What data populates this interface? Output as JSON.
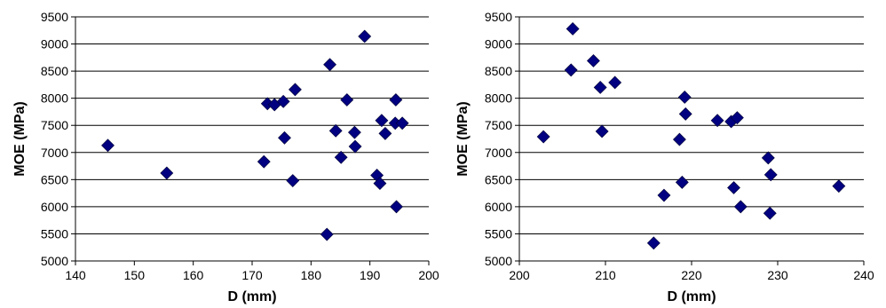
{
  "chart_data": [
    {
      "type": "scatter",
      "xlabel": "D (mm)",
      "ylabel": "MOE (MPa)",
      "xlim": [
        140,
        200
      ],
      "ylim": [
        5000,
        9500
      ],
      "xticks": [
        "140",
        "150",
        "160",
        "170",
        "180",
        "190",
        "200"
      ],
      "yticks": [
        "5000",
        "5500",
        "6000",
        "6500",
        "7000",
        "7500",
        "8000",
        "8500",
        "9000",
        "9500"
      ],
      "grid": "horizontal",
      "marker_color": "#000080",
      "points": [
        [
          145.5,
          7130
        ],
        [
          155.5,
          6620
        ],
        [
          172,
          6830
        ],
        [
          172.6,
          7900
        ],
        [
          173.8,
          7880
        ],
        [
          175.3,
          7940
        ],
        [
          175.5,
          7270
        ],
        [
          176.9,
          6480
        ],
        [
          177.3,
          8160
        ],
        [
          182.7,
          5490
        ],
        [
          183.2,
          8620
        ],
        [
          184.2,
          7400
        ],
        [
          185.1,
          6910
        ],
        [
          186.1,
          7970
        ],
        [
          187.4,
          7370
        ],
        [
          187.5,
          7110
        ],
        [
          189.1,
          9140
        ],
        [
          191.2,
          6580
        ],
        [
          191.7,
          6430
        ],
        [
          192,
          7590
        ],
        [
          192.6,
          7350
        ],
        [
          194.3,
          7540
        ],
        [
          194.4,
          7970
        ],
        [
          194.5,
          6000
        ],
        [
          195.5,
          7540
        ]
      ]
    },
    {
      "type": "scatter",
      "xlabel": "D (mm)",
      "ylabel": "MOE (MPa)",
      "xlim": [
        200,
        240
      ],
      "ylim": [
        5000,
        9500
      ],
      "xticks": [
        "200",
        "210",
        "220",
        "230",
        "240"
      ],
      "yticks": [
        "5000",
        "5500",
        "6000",
        "6500",
        "7000",
        "7500",
        "8000",
        "8500",
        "9000",
        "9500"
      ],
      "grid": "horizontal",
      "marker_color": "#000080",
      "points": [
        [
          202.8,
          7290
        ],
        [
          206,
          8520
        ],
        [
          206.2,
          9280
        ],
        [
          208.6,
          8690
        ],
        [
          209.4,
          8200
        ],
        [
          209.6,
          7390
        ],
        [
          211.1,
          8290
        ],
        [
          215.6,
          5330
        ],
        [
          216.8,
          6210
        ],
        [
          218.6,
          7240
        ],
        [
          218.9,
          6450
        ],
        [
          219.2,
          8020
        ],
        [
          219.3,
          7710
        ],
        [
          223,
          7590
        ],
        [
          224.6,
          7570
        ],
        [
          224.9,
          6350
        ],
        [
          225.3,
          7640
        ],
        [
          225.7,
          6000
        ],
        [
          228.9,
          6900
        ],
        [
          229.1,
          5880
        ],
        [
          229.2,
          6590
        ],
        [
          237.1,
          6380
        ]
      ]
    }
  ]
}
